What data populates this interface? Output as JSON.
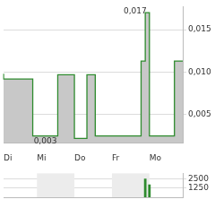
{
  "chart_data": [
    {
      "type": "line",
      "categories": [
        "Di",
        null,
        null,
        null,
        null,
        null,
        null,
        null,
        "Mi",
        null,
        null,
        null,
        null,
        null,
        null,
        null,
        null,
        "Do",
        null,
        null,
        null,
        null,
        null,
        null,
        null,
        null,
        "Fr",
        null,
        null,
        null,
        null,
        null,
        null,
        null,
        null,
        "Mo",
        null,
        null,
        null,
        null,
        null,
        null,
        null,
        null
      ],
      "values": [
        0.0098,
        0.0092,
        0.0092,
        0.0092,
        0.0092,
        0.0092,
        0.0092,
        0.0092,
        0.0025,
        0.0025,
        0.0025,
        0.0025,
        0.0025,
        0.0025,
        0.0097,
        0.0097,
        0.0097,
        0.0097,
        0.0022,
        0.0022,
        0.0022,
        0.0097,
        0.0097,
        0.0025,
        0.0025,
        0.0025,
        0.0025,
        0.0025,
        0.0025,
        0.0025,
        0.0025,
        0.0025,
        0.0025,
        0.0025,
        0.0113,
        0.017,
        0.0025,
        0.0025,
        0.0025,
        0.0025,
        0.0025,
        0.0025,
        0.0113,
        0.0113
      ],
      "color": "#2e8b2e",
      "line_style": "steps",
      "ylim": [
        0.0017,
        0.0177
      ],
      "yticks": [
        {
          "value": 0.005,
          "label": "0,005"
        },
        {
          "value": 0.01,
          "label": "0,010"
        },
        {
          "value": 0.015,
          "label": "0,015"
        }
      ],
      "grid": true,
      "annotations": [
        {
          "text": "0,017",
          "x": 35,
          "y": 0.017
        },
        {
          "text": "0,003",
          "x": 10,
          "y": 0.0025
        }
      ]
    },
    {
      "type": "bar",
      "categories": [
        "Di",
        null,
        null,
        null,
        null,
        null,
        null,
        null,
        "Mi",
        null,
        null,
        null,
        null,
        null,
        null,
        null,
        null,
        "Do",
        null,
        null,
        null,
        null,
        null,
        null,
        null,
        null,
        "Fr",
        null,
        null,
        null,
        null,
        null,
        null,
        null,
        null,
        "Mo",
        null,
        null,
        null,
        null,
        null,
        null,
        null,
        null
      ],
      "values": [
        0,
        0,
        0,
        0,
        0,
        0,
        0,
        0,
        0,
        0,
        0,
        0,
        0,
        0,
        0,
        0,
        0,
        0,
        0,
        0,
        0,
        0,
        0,
        0,
        0,
        0,
        0,
        0,
        0,
        0,
        0,
        0,
        0,
        0,
        2500,
        1700,
        0,
        0,
        0,
        0,
        0,
        0,
        0,
        0
      ],
      "color": "#2e8b2e",
      "ylim": [
        0,
        3200
      ],
      "yticks": [
        1250,
        2500
      ],
      "grid": true,
      "tick_labels": "y"
    }
  ]
}
